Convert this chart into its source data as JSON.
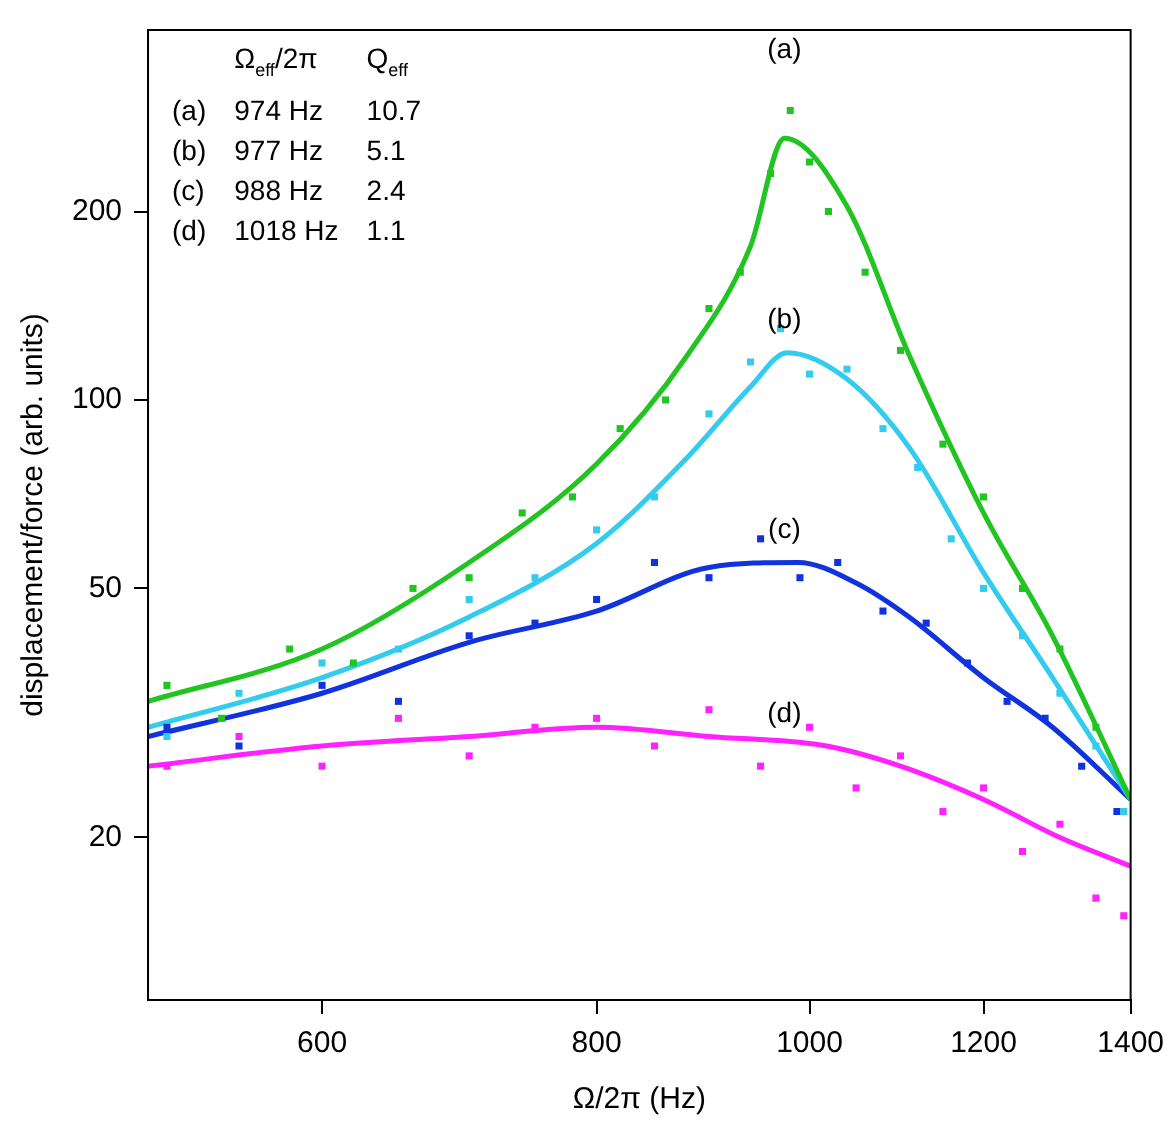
{
  "chart_data": {
    "type": "scatter",
    "xlabel": "Ω/2π (Hz)",
    "ylabel": "displacement/force (arb. units)",
    "log": "xy",
    "grid": false,
    "legend": false,
    "marker": "square",
    "xlim": [
      500,
      1400
    ],
    "xticks": [
      600,
      800,
      1000,
      1200,
      1400
    ],
    "ylim": [
      11,
      390
    ],
    "yticks": [
      20,
      50,
      100,
      200
    ],
    "annotations": [
      "Ω$_{eff}$/2π",
      "Q$_{eff}$",
      "(a)",
      "974 Hz",
      "10.7",
      "(b)",
      "977 Hz",
      "5.1",
      "(c)",
      "988 Hz",
      "2.4",
      "(d)",
      "1018 Hz",
      "1.1"
    ],
    "series": [
      {
        "color": "#22c422",
        "x": [
          510,
          540,
          580,
          620,
          660,
          700,
          740,
          780,
          820,
          860,
          900,
          930,
          960,
          980,
          1000,
          1020,
          1060,
          1100,
          1150,
          1200,
          1250,
          1300,
          1350
        ],
        "values": [
          35,
          31,
          40,
          38,
          50,
          52,
          66,
          70,
          90,
          100,
          140,
          160,
          230,
          290,
          240,
          200,
          160,
          120,
          85,
          70,
          50,
          40,
          30
        ]
      },
      {
        "color": "#33ccee",
        "x": [
          510,
          550,
          600,
          650,
          700,
          750,
          800,
          850,
          900,
          940,
          970,
          1000,
          1040,
          1080,
          1120,
          1160,
          1200,
          1250,
          1300,
          1350,
          1390
        ],
        "values": [
          29,
          34,
          38,
          40,
          48,
          52,
          62,
          70,
          95,
          115,
          130,
          110,
          112,
          90,
          78,
          60,
          50,
          42,
          34,
          28,
          22
        ]
      },
      {
        "color": "#1133dd",
        "x": [
          510,
          550,
          600,
          650,
          700,
          750,
          800,
          850,
          900,
          950,
          990,
          1030,
          1080,
          1130,
          1180,
          1230,
          1280,
          1330,
          1380
        ],
        "values": [
          30,
          28,
          35,
          33,
          42,
          44,
          48,
          55,
          52,
          60,
          52,
          55,
          46,
          44,
          38,
          33,
          31,
          26,
          22
        ]
      },
      {
        "color": "#ff22ff",
        "x": [
          510,
          550,
          600,
          650,
          700,
          750,
          800,
          850,
          900,
          950,
          1000,
          1050,
          1100,
          1150,
          1200,
          1250,
          1300,
          1350,
          1390
        ],
        "values": [
          26,
          29,
          26,
          31,
          27,
          30,
          31,
          28,
          32,
          26,
          30,
          24,
          27,
          22,
          24,
          19,
          21,
          16,
          15
        ]
      },
      {
        "type": "line",
        "name": "(a)",
        "marker": "none",
        "color": "#22c422",
        "x": [
          500,
          600,
          700,
          800,
          880,
          940,
          974,
          1040,
          1110,
          1200,
          1290,
          1400
        ],
        "values": [
          33,
          40,
          55,
          79,
          118,
          176,
          262,
          204,
          118,
          66,
          42,
          23
        ]
      },
      {
        "type": "line",
        "name": "(b)",
        "marker": "none",
        "color": "#33ccee",
        "x": [
          500,
          600,
          700,
          800,
          880,
          940,
          977,
          1040,
          1110,
          1200,
          1290,
          1400
        ],
        "values": [
          30,
          36,
          45,
          59,
          81,
          105,
          119,
          108,
          84,
          53,
          36,
          23
        ]
      },
      {
        "type": "line",
        "name": "(c)",
        "marker": "none",
        "color": "#1133dd",
        "x": [
          500,
          600,
          700,
          800,
          900,
          988,
          1050,
          1110,
          1200,
          1290,
          1400
        ],
        "values": [
          29,
          34,
          41,
          46,
          54,
          55,
          51,
          45,
          36,
          30,
          23
        ]
      },
      {
        "type": "line",
        "name": "(d)",
        "marker": "none",
        "color": "#ff22ff",
        "x": [
          500,
          600,
          700,
          800,
          900,
          1018,
          1100,
          1200,
          1300,
          1400
        ],
        "values": [
          26,
          28,
          29,
          30,
          29,
          28,
          26,
          23,
          20,
          18
        ]
      }
    ]
  }
}
